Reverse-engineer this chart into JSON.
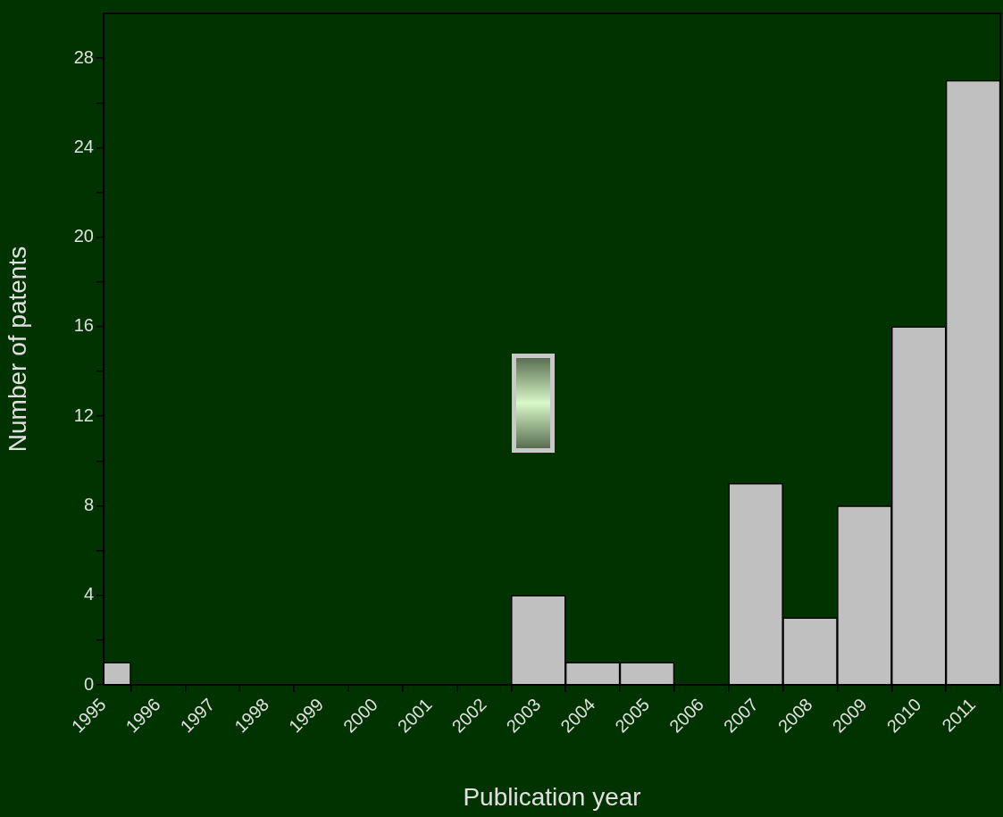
{
  "chart_data": {
    "type": "bar",
    "xlabel": "Publication year",
    "ylabel": "Number of patents",
    "x": [
      1995,
      1996,
      1997,
      1998,
      1999,
      2000,
      2001,
      2002,
      2003,
      2004,
      2005,
      2006,
      2007,
      2008,
      2009,
      2010,
      2011
    ],
    "values": [
      1,
      0,
      0,
      0,
      0,
      0,
      0,
      0,
      4,
      1,
      1,
      0,
      9,
      3,
      8,
      16,
      27
    ],
    "color": "#c0c0c0",
    "xlim": [
      1995,
      2011.5
    ],
    "xticks": [
      1995,
      1996,
      1997,
      1998,
      1999,
      2000,
      2001,
      2002,
      2003,
      2004,
      2005,
      2006,
      2007,
      2008,
      2009,
      2010,
      2011
    ],
    "ylim": [
      0,
      30
    ],
    "yticks": [
      0,
      {
        "value": 2,
        "label": null
      },
      4,
      {
        "value": 6,
        "label": null
      },
      8,
      {
        "value": 10,
        "label": null
      },
      12,
      {
        "value": 14,
        "label": null
      },
      16,
      {
        "value": 18,
        "label": null
      },
      20,
      {
        "value": 22,
        "label": null
      },
      24,
      {
        "value": 26,
        "label": null
      },
      28
    ],
    "grid": false,
    "legend": false
  }
}
